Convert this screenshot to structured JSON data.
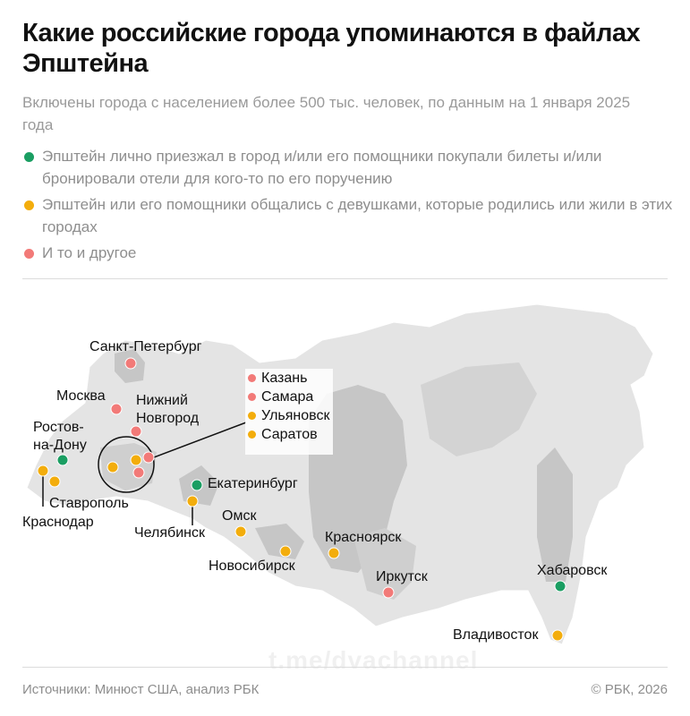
{
  "header": {
    "title": "Какие российские города упоминаются в файлах Эпштейна",
    "subtitle": "Включены города с населением более 500 тыс. человек, по данным на 1 января 2025 года"
  },
  "legend": [
    {
      "label": "Эпштейн лично приезжал в город и/или его помощники покупали билеты и/или бронировали отели для кого-то по его поручению",
      "color": "#1a9e62"
    },
    {
      "label": "Эпштейн или его помощники общались с девушками, которые родились или жили в этих городах",
      "color": "#f3ad0c"
    },
    {
      "label": "И то и другое",
      "color": "#f27a78"
    }
  ],
  "map": {
    "land_color": "#e4e4e4",
    "highlight_region_color": "#c6c6c6",
    "cities": [
      {
        "name": "Санкт-Петербург",
        "category": "both"
      },
      {
        "name": "Москва",
        "category": "both"
      },
      {
        "name": "Нижний Новгород",
        "category": "both"
      },
      {
        "name": "Ростов-на-Дону",
        "category": "visited"
      },
      {
        "name": "Краснодар",
        "category": "girls"
      },
      {
        "name": "Ставрополь",
        "category": "girls"
      },
      {
        "name": "Екатеринбург",
        "category": "visited"
      },
      {
        "name": "Челябинск",
        "category": "girls"
      },
      {
        "name": "Омск",
        "category": "girls"
      },
      {
        "name": "Новосибирск",
        "category": "girls"
      },
      {
        "name": "Красноярск",
        "category": "girls"
      },
      {
        "name": "Иркутск",
        "category": "both"
      },
      {
        "name": "Хабаровск",
        "category": "visited"
      },
      {
        "name": "Владивосток",
        "category": "girls"
      }
    ],
    "inset": [
      {
        "name": "Казань",
        "category": "both"
      },
      {
        "name": "Самара",
        "category": "both"
      },
      {
        "name": "Ульяновск",
        "category": "girls"
      },
      {
        "name": "Саратов",
        "category": "girls"
      }
    ]
  },
  "watermark": "t.me/dvachannel",
  "footer": {
    "source": "Источники: Минюст США, анализ РБК",
    "copyright": "© РБК, 2026"
  }
}
